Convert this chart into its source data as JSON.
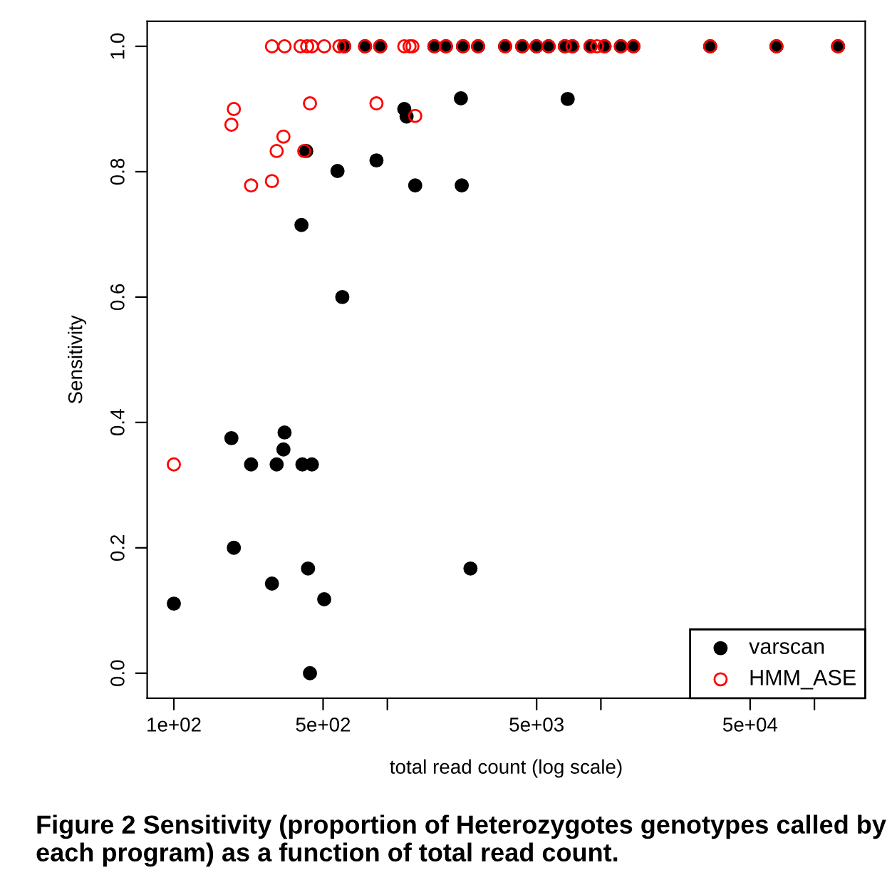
{
  "chart_data": {
    "type": "scatter",
    "xlabel": "total read count (log scale)",
    "ylabel": "Sensitivity",
    "annotations": [
      "Figure 2 Sensitivity (proportion of Heterozygotes genotypes called by each program) as a function of total read count."
    ],
    "log": "x",
    "marker": "circle",
    "legend": "bottom right",
    "grid": false,
    "xlim": [
      75,
      173000
    ],
    "ylim": [
      -0.04,
      1.04
    ],
    "xticks": [
      {
        "value": 100,
        "label": "1e+02"
      },
      {
        "value": 500,
        "label": "5e+02"
      },
      {
        "value": 1000,
        "label": null
      },
      {
        "value": 5000,
        "label": "5e+03"
      },
      {
        "value": 10000,
        "label": null
      },
      {
        "value": 50000,
        "label": "5e+04"
      },
      {
        "value": 100000,
        "label": null
      }
    ],
    "yticks": [
      {
        "value": 0,
        "label": "0.0"
      },
      {
        "value": 0.2,
        "label": "0.2"
      },
      {
        "value": 0.4,
        "label": "0.4"
      },
      {
        "value": 0.6,
        "label": "0.6"
      },
      {
        "value": 0.8,
        "label": "0.8"
      },
      {
        "value": 1.0,
        "label": "1.0"
      }
    ],
    "series": [
      {
        "name": "varscan",
        "color": "#000000",
        "x": [
          100,
          186,
          191,
          230,
          288,
          303,
          326,
          330,
          400,
          425,
          443,
          434,
          506,
          2450,
          417,
          396,
          584,
          615,
          889,
          1200,
          1230,
          1350,
          2210,
          2230,
          6990,
          628,
          786,
          926,
          1660,
          1880,
          2260,
          2660,
          3560,
          4280,
          4990,
          5690,
          6780,
          7360,
          8940,
          9590,
          10400,
          12400,
          14200,
          32500,
          66400,
          129000
        ],
        "values": [
          0.111,
          0.375,
          0.2,
          0.333,
          0.143,
          0.333,
          0.357,
          0.384,
          0.333,
          0.167,
          0.333,
          0.0,
          0.118,
          0.167,
          0.833,
          0.715,
          0.801,
          0.6,
          0.818,
          0.9,
          0.888,
          0.778,
          0.917,
          0.778,
          0.916,
          1.0,
          1.0,
          1.0,
          1.0,
          1.0,
          1.0,
          1.0,
          1.0,
          1.0,
          1.0,
          1.0,
          1.0,
          1.0,
          1.0,
          null,
          1.0,
          1.0,
          1.0,
          1.0,
          1.0,
          1.0
        ]
      },
      {
        "name": "HMM_ASE",
        "color": "#ff0000",
        "x": [
          100,
          191,
          186,
          326,
          303,
          408,
          288,
          230,
          434,
          889,
          1350,
          288,
          330,
          392,
          421,
          443,
          506,
          596,
          628,
          786,
          926,
          1200,
          1270,
          1310,
          1660,
          1880,
          2260,
          2660,
          3560,
          4280,
          4990,
          5690,
          6780,
          7360,
          8940,
          9590,
          10400,
          12400,
          14200,
          32500,
          66400,
          129000
        ],
        "values": [
          0.333,
          0.9,
          0.875,
          0.856,
          0.833,
          0.833,
          0.785,
          0.778,
          0.909,
          0.909,
          0.889,
          1.0,
          1.0,
          1.0,
          1.0,
          1.0,
          1.0,
          1.0,
          1.0,
          1.0,
          1.0,
          1.0,
          1.0,
          1.0,
          1.0,
          1.0,
          1.0,
          1.0,
          1.0,
          1.0,
          1.0,
          1.0,
          1.0,
          1.0,
          1.0,
          1.0,
          1.0,
          1.0,
          1.0,
          1.0,
          1.0,
          1.0
        ]
      }
    ]
  }
}
